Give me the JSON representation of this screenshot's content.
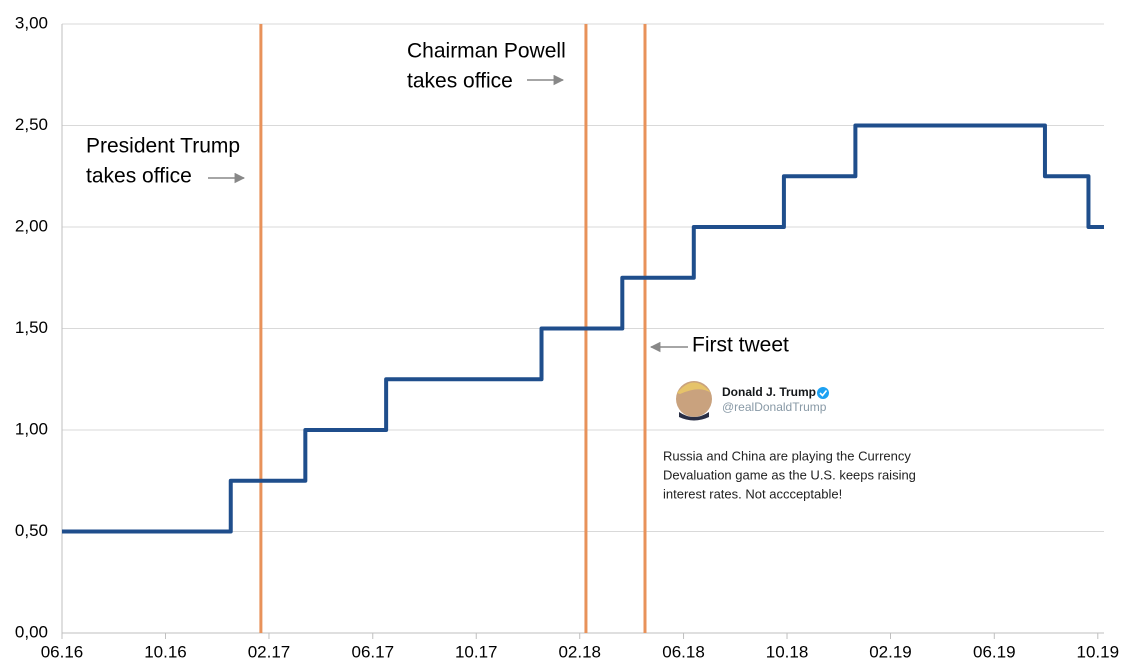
{
  "chart_data": {
    "type": "line",
    "step": "post",
    "xlim": [
      2016.417,
      2019.77
    ],
    "xticks": [
      {
        "value": 2016.417,
        "label": "06.16"
      },
      {
        "value": 2016.75,
        "label": "10.16"
      },
      {
        "value": 2017.083,
        "label": "02.17"
      },
      {
        "value": 2017.417,
        "label": "06.17"
      },
      {
        "value": 2017.75,
        "label": "10.17"
      },
      {
        "value": 2018.083,
        "label": "02.18"
      },
      {
        "value": 2018.417,
        "label": "06.18"
      },
      {
        "value": 2018.75,
        "label": "10.18"
      },
      {
        "value": 2019.083,
        "label": "02.19"
      },
      {
        "value": 2019.417,
        "label": "06.19"
      },
      {
        "value": 2019.75,
        "label": "10.19"
      }
    ],
    "ylim": [
      0,
      3
    ],
    "yticks": [
      {
        "value": 0,
        "label": "0,00"
      },
      {
        "value": 0.5,
        "label": "0,50"
      },
      {
        "value": 1,
        "label": "1,00"
      },
      {
        "value": 1.5,
        "label": "1,50"
      },
      {
        "value": 2,
        "label": "2,00"
      },
      {
        "value": 2.5,
        "label": "2,50"
      },
      {
        "value": 3,
        "label": "3,00"
      }
    ],
    "grid": true,
    "x": [
      2016.417,
      2016.96,
      2017.2,
      2017.46,
      2017.96,
      2018.22,
      2018.45,
      2018.74,
      2018.97,
      2019.58,
      2019.72,
      2019.77
    ],
    "series": [
      {
        "color": "#1f4e8c",
        "values": [
          0.5,
          0.75,
          1,
          1.25,
          1.5,
          1.75,
          2,
          2.25,
          2.5,
          2.25,
          2,
          2
        ]
      }
    ],
    "events": [
      {
        "x": 2017.057,
        "color": "#e8925a",
        "label": [
          "President Trump",
          "takes office"
        ]
      },
      {
        "x": 2018.103,
        "color": "#e8925a",
        "label": [
          "Chairman Powell",
          "takes office"
        ]
      },
      {
        "x": 2018.293,
        "color": "#e8925a",
        "label": [
          "First tweet"
        ]
      }
    ],
    "tweet": {
      "name": "Donald J. Trump",
      "handle": "@realDonaldTrump",
      "text": [
        "Russia and China are playing the Currency",
        "Devaluation game as the U.S. keeps raising",
        "interest rates. Not accceptable!"
      ]
    }
  }
}
